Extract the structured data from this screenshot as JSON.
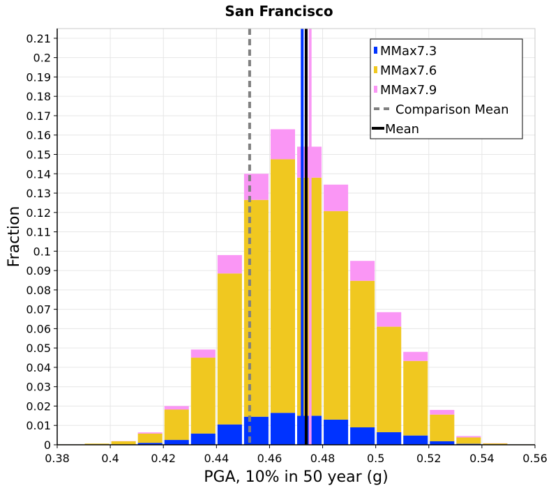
{
  "chart_data": {
    "type": "bar",
    "stacked": true,
    "title": "San Francisco",
    "xlabel": "PGA, 10% in 50 year (g)",
    "ylabel": "Fraction",
    "xlim": [
      0.38,
      0.56
    ],
    "ylim": [
      0,
      0.215
    ],
    "x_ticks": [
      0.38,
      0.4,
      0.42,
      0.44,
      0.46,
      0.48,
      0.5,
      0.52,
      0.54,
      0.56
    ],
    "x_tick_labels": [
      "0.38",
      "0.4",
      "0.42",
      "0.44",
      "0.46",
      "0.48",
      "0.5",
      "0.52",
      "0.54",
      "0.56"
    ],
    "y_ticks": [
      0,
      0.01,
      0.02,
      0.03,
      0.04,
      0.05,
      0.06,
      0.07,
      0.08,
      0.09,
      0.1,
      0.11,
      0.12,
      0.13,
      0.14,
      0.15,
      0.16,
      0.17,
      0.18,
      0.19,
      0.2,
      0.21
    ],
    "y_tick_labels": [
      "0",
      "0.01",
      "0.02",
      "0.03",
      "0.04",
      "0.05",
      "0.06",
      "0.07",
      "0.08",
      "0.09",
      "0.1",
      "0.11",
      "0.12",
      "0.13",
      "0.14",
      "0.15",
      "0.16",
      "0.17",
      "0.18",
      "0.19",
      "0.2",
      "0.21"
    ],
    "bin_width": 0.01,
    "bin_centers": [
      0.385,
      0.395,
      0.405,
      0.415,
      0.425,
      0.435,
      0.445,
      0.455,
      0.465,
      0.475,
      0.485,
      0.495,
      0.505,
      0.515,
      0.525,
      0.535,
      0.545,
      0.555
    ],
    "series": [
      {
        "name": "MMax7.3",
        "color": "#0033ff",
        "values": [
          0.0,
          0.0,
          0.0002,
          0.001,
          0.0025,
          0.0058,
          0.0105,
          0.0145,
          0.0165,
          0.015,
          0.013,
          0.009,
          0.0065,
          0.0048,
          0.0018,
          0.0005,
          0.0001,
          0.0
        ]
      },
      {
        "name": "MMax7.6",
        "color": "#f0c820",
        "values": [
          0.0002,
          0.0006,
          0.0016,
          0.0048,
          0.0157,
          0.0392,
          0.078,
          0.112,
          0.131,
          0.123,
          0.1077,
          0.0757,
          0.0545,
          0.0385,
          0.0138,
          0.0033,
          0.0006,
          0.0002
        ]
      },
      {
        "name": "MMax7.9",
        "color": "#fa96f5",
        "values": [
          0.0,
          0.0,
          0.0001,
          0.0006,
          0.0018,
          0.0042,
          0.0095,
          0.0135,
          0.0155,
          0.016,
          0.0137,
          0.0103,
          0.0075,
          0.0047,
          0.0024,
          0.0007,
          0.0001,
          0.0
        ]
      }
    ],
    "vlines": [
      {
        "name": "Comparison Mean",
        "x": 0.4525,
        "color": "#808080",
        "style": "dashed"
      },
      {
        "name": "MMax7.3 Mean",
        "x": 0.4723,
        "color": "#0033ff",
        "style": "solid"
      },
      {
        "name": "MMax7.9 Mean",
        "x": 0.4753,
        "color": "#fa96f5",
        "style": "solid"
      },
      {
        "name": "Mean",
        "x": 0.4738,
        "color": "#000000",
        "style": "solid"
      }
    ],
    "legend": {
      "placement": "top-right",
      "entries": [
        {
          "label": "MMax7.3",
          "kind": "box",
          "color": "#0033ff"
        },
        {
          "label": "MMax7.6",
          "kind": "box",
          "color": "#f0c820"
        },
        {
          "label": "MMax7.9",
          "kind": "box",
          "color": "#fa96f5"
        },
        {
          "label": "Comparison Mean",
          "kind": "dash",
          "color": "#808080"
        },
        {
          "label": "Mean",
          "kind": "line",
          "color": "#000000"
        }
      ]
    }
  }
}
